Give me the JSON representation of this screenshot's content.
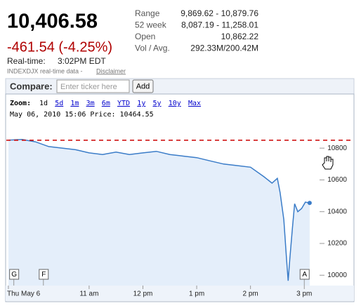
{
  "quote": {
    "price": "10,406.58",
    "change": "-461.54 (-4.25%)",
    "realtime_label": "Real-time:",
    "realtime_time": "3:02PM EDT",
    "source": "INDEXDJX real-time data -",
    "disclaimer": "Disclaimer"
  },
  "stats": [
    [
      "Range",
      "9,869.62 - 10,879.76"
    ],
    [
      "52 week",
      "8,087.19 - 11,258.01"
    ],
    [
      "Open",
      "10,862.22"
    ],
    [
      "Vol / Avg.",
      "292.33M/200.42M"
    ]
  ],
  "compare": {
    "label": "Compare:",
    "placeholder": "Enter ticker here",
    "button": "Add"
  },
  "zoom": {
    "label": "Zoom:",
    "options": [
      "1d",
      "5d",
      "1m",
      "3m",
      "6m",
      "YTD",
      "1y",
      "5y",
      "10y",
      "Max"
    ]
  },
  "info": "May 06, 2010 15:06 Price: 10464.55",
  "chart_data": {
    "type": "line",
    "color": "#3a7cc8",
    "x": [
      9.5,
      9.75,
      10,
      10.25,
      10.5,
      10.75,
      11,
      11.25,
      11.5,
      11.75,
      12,
      12.25,
      12.5,
      12.75,
      13,
      13.25,
      13.5,
      13.75,
      14,
      14.25,
      14.4,
      14.5,
      14.55,
      14.62,
      14.67,
      14.7,
      14.73,
      14.78,
      14.82,
      14.88,
      14.95,
      15.02,
      15.1
    ],
    "values": [
      10850,
      10855,
      10840,
      10810,
      10800,
      10790,
      10770,
      10760,
      10775,
      10760,
      10770,
      10780,
      10760,
      10750,
      10740,
      10720,
      10700,
      10690,
      10680,
      10620,
      10580,
      10610,
      10520,
      10350,
      10100,
      9965,
      10100,
      10300,
      10450,
      10400,
      10420,
      10460,
      10455
    ],
    "xlim": [
      9.5,
      15.95
    ],
    "ylim": [
      9935,
      11070
    ],
    "xticks": [
      {
        "value": 9.5,
        "label": "Thu May 6"
      },
      {
        "value": 11,
        "label": "11 am"
      },
      {
        "value": 12,
        "label": "12 pm"
      },
      {
        "value": 13,
        "label": "1 pm"
      },
      {
        "value": 14,
        "label": "2 pm"
      },
      {
        "value": 15,
        "label": "3 pm"
      }
    ],
    "yticks": [
      10000,
      10200,
      10400,
      10600,
      10800
    ],
    "reference_line": {
      "value": 10850,
      "color": "#cc0000"
    },
    "flags": [
      {
        "x": 9.6,
        "label": "G"
      },
      {
        "x": 10.15,
        "label": "F"
      },
      {
        "x": 15.0,
        "label": "A"
      }
    ]
  }
}
